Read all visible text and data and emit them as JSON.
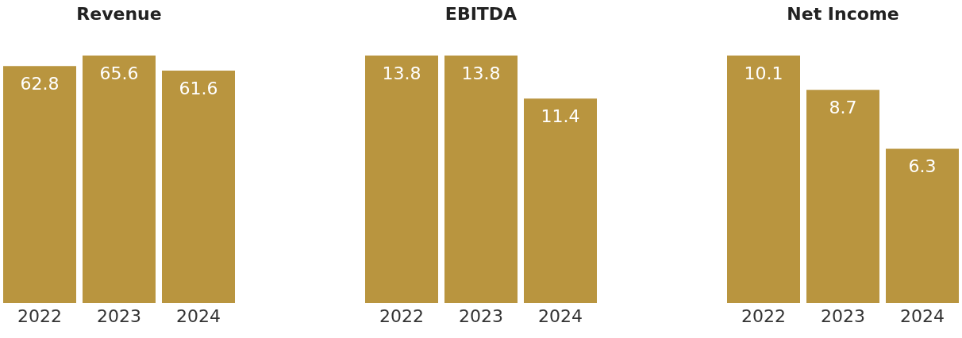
{
  "chart_data": [
    {
      "type": "bar",
      "title": "Revenue",
      "categories": [
        "2022",
        "2023",
        "2024"
      ],
      "values": [
        62.8,
        65.6,
        61.6
      ],
      "color": "#b9953f",
      "data_labels": true
    },
    {
      "type": "bar",
      "title": "EBITDA",
      "categories": [
        "2022",
        "2023",
        "2024"
      ],
      "values": [
        13.8,
        13.8,
        11.4
      ],
      "color": "#b9953f",
      "data_labels": true
    },
    {
      "type": "bar",
      "title": "Net Income",
      "categories": [
        "2022",
        "2023",
        "2024"
      ],
      "values": [
        10.1,
        8.7,
        6.3
      ],
      "color": "#b9953f",
      "data_labels": true
    }
  ]
}
